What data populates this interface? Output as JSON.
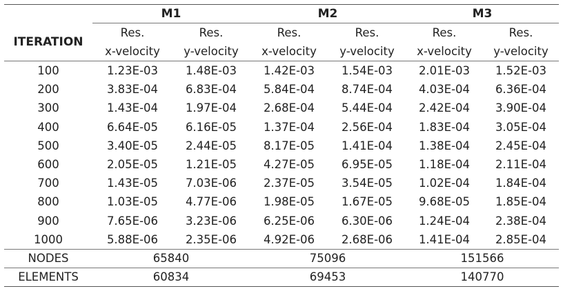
{
  "header": {
    "iteration_label": "ITERATION",
    "groups": [
      "M1",
      "M2",
      "M3"
    ],
    "sub_line1": [
      "Res.",
      "Res.",
      "Res.",
      "Res.",
      "Res.",
      "Res."
    ],
    "sub_line2": [
      "x-velocity",
      "y-velocity",
      "x-velocity",
      "y-velocity",
      "x-velocity",
      "y-velocity"
    ]
  },
  "rows": [
    {
      "iter": "100",
      "vals": [
        "1.23E-03",
        "1.48E-03",
        "1.42E-03",
        "1.54E-03",
        "2.01E-03",
        "1.52E-03"
      ]
    },
    {
      "iter": "200",
      "vals": [
        "3.83E-04",
        "6.83E-04",
        "5.84E-04",
        "8.74E-04",
        "4.03E-04",
        "6.36E-04"
      ]
    },
    {
      "iter": "300",
      "vals": [
        "1.43E-04",
        "1.97E-04",
        "2.68E-04",
        "5.44E-04",
        "2.42E-04",
        "3.90E-04"
      ]
    },
    {
      "iter": "400",
      "vals": [
        "6.64E-05",
        "6.16E-05",
        "1.37E-04",
        "2.56E-04",
        "1.83E-04",
        "3.05E-04"
      ]
    },
    {
      "iter": "500",
      "vals": [
        "3.40E-05",
        "2.44E-05",
        "8.17E-05",
        "1.41E-04",
        "1.38E-04",
        "2.45E-04"
      ]
    },
    {
      "iter": "600",
      "vals": [
        "2.05E-05",
        "1.21E-05",
        "4.27E-05",
        "6.95E-05",
        "1.18E-04",
        "2.11E-04"
      ]
    },
    {
      "iter": "700",
      "vals": [
        "1.43E-05",
        "7.03E-06",
        "2.37E-05",
        "3.54E-05",
        "1.02E-04",
        "1.84E-04"
      ]
    },
    {
      "iter": "800",
      "vals": [
        "1.03E-05",
        "4.77E-06",
        "1.98E-05",
        "1.67E-05",
        "9.68E-05",
        "1.85E-04"
      ]
    },
    {
      "iter": "900",
      "vals": [
        "7.65E-06",
        "3.23E-06",
        "6.25E-06",
        "6.30E-06",
        "1.24E-04",
        "2.38E-04"
      ]
    },
    {
      "iter": "1000",
      "vals": [
        "5.88E-06",
        "2.35E-06",
        "4.92E-06",
        "2.68E-06",
        "1.41E-04",
        "2.85E-04"
      ]
    }
  ],
  "footer": {
    "nodes_label": "NODES",
    "nodes": [
      "65840",
      "75096",
      "151566"
    ],
    "elements_label": "ELEMENTS",
    "elements": [
      "60834",
      "69453",
      "140770"
    ]
  }
}
